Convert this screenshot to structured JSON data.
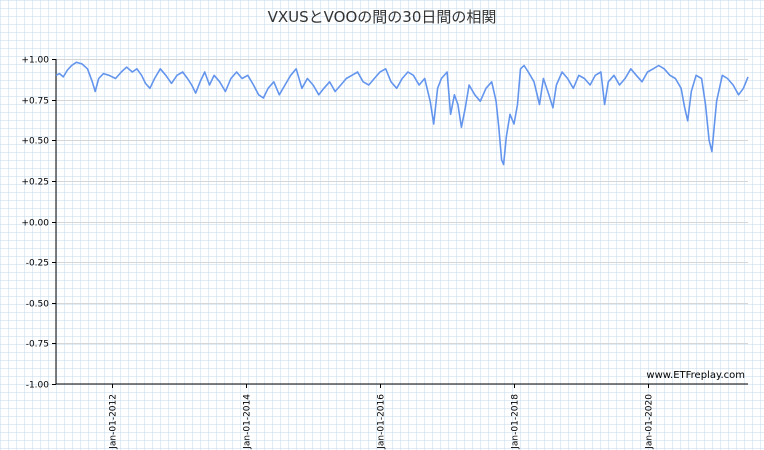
{
  "chart_data": {
    "type": "line",
    "title": "VXUSとVOOの間の30日間の相関",
    "xlabel": "",
    "ylabel": "",
    "watermark": "www.ETFreplay.com",
    "x_range": [
      "2011-03-01",
      "2021-06-30"
    ],
    "ylim": [
      -1.0,
      1.0
    ],
    "y_ticks": [
      1.0,
      0.75,
      0.5,
      0.25,
      0.0,
      -0.25,
      -0.5,
      -0.75,
      -1.0
    ],
    "y_tick_labels": [
      "+1.00",
      "+0.75",
      "+0.50",
      "+0.25",
      "+0.00",
      "-0.25",
      "-0.50",
      "-0.75",
      "-1.00"
    ],
    "x_ticks": [
      "2012-01-01",
      "2014-01-01",
      "2016-01-01",
      "2018-01-01",
      "2020-01-01"
    ],
    "x_tick_labels": [
      "Jan-01-2012",
      "Jan-01-2014",
      "Jan-01-2016",
      "Jan-01-2018",
      "Jan-01-2020"
    ],
    "grid": true,
    "series": [
      {
        "color": "#6495ed",
        "points": [
          [
            "2011-03-01",
            0.9
          ],
          [
            "2011-03-20",
            0.91
          ],
          [
            "2011-04-10",
            0.89
          ],
          [
            "2011-05-01",
            0.93
          ],
          [
            "2011-05-25",
            0.96
          ],
          [
            "2011-06-20",
            0.98
          ],
          [
            "2011-07-20",
            0.97
          ],
          [
            "2011-08-20",
            0.94
          ],
          [
            "2011-09-15",
            0.86
          ],
          [
            "2011-10-01",
            0.8
          ],
          [
            "2011-10-20",
            0.88
          ],
          [
            "2011-11-15",
            0.91
          ],
          [
            "2011-12-15",
            0.9
          ],
          [
            "2012-01-20",
            0.88
          ],
          [
            "2012-02-20",
            0.92
          ],
          [
            "2012-03-20",
            0.95
          ],
          [
            "2012-04-20",
            0.92
          ],
          [
            "2012-05-15",
            0.94
          ],
          [
            "2012-06-10",
            0.9
          ],
          [
            "2012-07-01",
            0.85
          ],
          [
            "2012-07-25",
            0.82
          ],
          [
            "2012-08-20",
            0.88
          ],
          [
            "2012-09-20",
            0.94
          ],
          [
            "2012-10-20",
            0.9
          ],
          [
            "2012-11-20",
            0.85
          ],
          [
            "2012-12-20",
            0.9
          ],
          [
            "2013-01-20",
            0.92
          ],
          [
            "2013-02-15",
            0.88
          ],
          [
            "2013-03-10",
            0.84
          ],
          [
            "2013-04-01",
            0.79
          ],
          [
            "2013-04-25",
            0.86
          ],
          [
            "2013-05-20",
            0.92
          ],
          [
            "2013-06-15",
            0.84
          ],
          [
            "2013-07-10",
            0.9
          ],
          [
            "2013-08-10",
            0.86
          ],
          [
            "2013-09-10",
            0.8
          ],
          [
            "2013-10-10",
            0.88
          ],
          [
            "2013-11-10",
            0.92
          ],
          [
            "2013-12-10",
            0.88
          ],
          [
            "2014-01-10",
            0.9
          ],
          [
            "2014-02-10",
            0.84
          ],
          [
            "2014-03-10",
            0.78
          ],
          [
            "2014-04-05",
            0.76
          ],
          [
            "2014-05-01",
            0.82
          ],
          [
            "2014-06-01",
            0.86
          ],
          [
            "2014-07-01",
            0.78
          ],
          [
            "2014-08-01",
            0.84
          ],
          [
            "2014-09-01",
            0.9
          ],
          [
            "2014-10-01",
            0.94
          ],
          [
            "2014-11-01",
            0.82
          ],
          [
            "2014-12-01",
            0.88
          ],
          [
            "2015-01-01",
            0.84
          ],
          [
            "2015-02-01",
            0.78
          ],
          [
            "2015-03-01",
            0.82
          ],
          [
            "2015-04-01",
            0.86
          ],
          [
            "2015-05-01",
            0.8
          ],
          [
            "2015-06-01",
            0.84
          ],
          [
            "2015-07-01",
            0.88
          ],
          [
            "2015-08-01",
            0.9
          ],
          [
            "2015-09-01",
            0.92
          ],
          [
            "2015-10-01",
            0.86
          ],
          [
            "2015-11-01",
            0.84
          ],
          [
            "2015-12-01",
            0.88
          ],
          [
            "2016-01-01",
            0.92
          ],
          [
            "2016-02-01",
            0.94
          ],
          [
            "2016-03-01",
            0.86
          ],
          [
            "2016-04-01",
            0.82
          ],
          [
            "2016-05-01",
            0.88
          ],
          [
            "2016-06-01",
            0.92
          ],
          [
            "2016-07-01",
            0.9
          ],
          [
            "2016-08-01",
            0.84
          ],
          [
            "2016-09-01",
            0.88
          ],
          [
            "2016-10-01",
            0.74
          ],
          [
            "2016-10-20",
            0.6
          ],
          [
            "2016-11-10",
            0.82
          ],
          [
            "2016-12-01",
            0.88
          ],
          [
            "2017-01-01",
            0.92
          ],
          [
            "2017-01-20",
            0.66
          ],
          [
            "2017-02-10",
            0.78
          ],
          [
            "2017-03-01",
            0.72
          ],
          [
            "2017-03-20",
            0.58
          ],
          [
            "2017-04-10",
            0.7
          ],
          [
            "2017-05-01",
            0.84
          ],
          [
            "2017-06-01",
            0.78
          ],
          [
            "2017-07-01",
            0.74
          ],
          [
            "2017-08-01",
            0.82
          ],
          [
            "2017-09-01",
            0.86
          ],
          [
            "2017-09-25",
            0.74
          ],
          [
            "2017-10-10",
            0.58
          ],
          [
            "2017-10-25",
            0.38
          ],
          [
            "2017-11-05",
            0.35
          ],
          [
            "2017-11-20",
            0.52
          ],
          [
            "2017-12-10",
            0.66
          ],
          [
            "2018-01-01",
            0.6
          ],
          [
            "2018-01-20",
            0.72
          ],
          [
            "2018-02-05",
            0.94
          ],
          [
            "2018-02-25",
            0.96
          ],
          [
            "2018-03-20",
            0.92
          ],
          [
            "2018-04-20",
            0.86
          ],
          [
            "2018-05-20",
            0.72
          ],
          [
            "2018-06-10",
            0.88
          ],
          [
            "2018-07-10",
            0.78
          ],
          [
            "2018-08-01",
            0.7
          ],
          [
            "2018-08-20",
            0.84
          ],
          [
            "2018-09-20",
            0.92
          ],
          [
            "2018-10-20",
            0.88
          ],
          [
            "2018-11-20",
            0.82
          ],
          [
            "2018-12-20",
            0.9
          ],
          [
            "2019-01-20",
            0.88
          ],
          [
            "2019-02-20",
            0.84
          ],
          [
            "2019-03-20",
            0.9
          ],
          [
            "2019-04-20",
            0.92
          ],
          [
            "2019-05-10",
            0.72
          ],
          [
            "2019-05-30",
            0.86
          ],
          [
            "2019-06-30",
            0.9
          ],
          [
            "2019-07-30",
            0.84
          ],
          [
            "2019-08-30",
            0.88
          ],
          [
            "2019-09-30",
            0.94
          ],
          [
            "2019-10-30",
            0.9
          ],
          [
            "2019-11-30",
            0.86
          ],
          [
            "2019-12-30",
            0.92
          ],
          [
            "2020-01-30",
            0.94
          ],
          [
            "2020-02-29",
            0.96
          ],
          [
            "2020-03-30",
            0.94
          ],
          [
            "2020-04-30",
            0.9
          ],
          [
            "2020-05-30",
            0.88
          ],
          [
            "2020-06-30",
            0.82
          ],
          [
            "2020-07-20",
            0.7
          ],
          [
            "2020-08-05",
            0.62
          ],
          [
            "2020-08-25",
            0.8
          ],
          [
            "2020-09-20",
            0.9
          ],
          [
            "2020-10-20",
            0.88
          ],
          [
            "2020-11-10",
            0.72
          ],
          [
            "2020-11-30",
            0.5
          ],
          [
            "2020-12-15",
            0.43
          ],
          [
            "2021-01-10",
            0.74
          ],
          [
            "2021-02-10",
            0.9
          ],
          [
            "2021-03-10",
            0.88
          ],
          [
            "2021-04-10",
            0.84
          ],
          [
            "2021-05-10",
            0.78
          ],
          [
            "2021-06-05",
            0.82
          ],
          [
            "2021-06-30",
            0.89
          ]
        ]
      }
    ]
  }
}
